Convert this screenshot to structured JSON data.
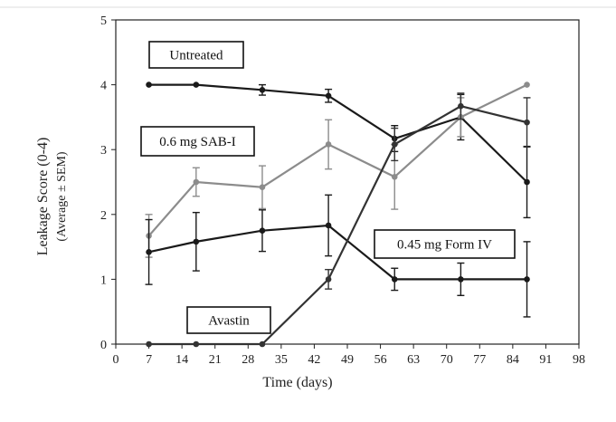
{
  "chart_data": {
    "type": "line",
    "title": "",
    "xlabel": "Time (days)",
    "ylabel": "Leakage Score (0-4)",
    "ylabel_sub": "(Average ± SEM)",
    "xlim": [
      0,
      98
    ],
    "ylim": [
      0,
      5
    ],
    "xticks": [
      0,
      7,
      14,
      21,
      28,
      35,
      42,
      49,
      56,
      63,
      70,
      77,
      84,
      91,
      98
    ],
    "xtick_labels": [
      "0",
      "7",
      "14",
      "21",
      "28",
      "35",
      "42",
      "49",
      "56",
      "63",
      "70",
      "77",
      "84",
      "91",
      "98"
    ],
    "yticks": [
      0,
      1,
      2,
      3,
      4,
      5
    ],
    "ytick_labels": [
      "0",
      "1",
      "2",
      "3",
      "4",
      "5"
    ],
    "grid": false,
    "series": [
      {
        "name": "Untreated",
        "color": "#1a1a1a",
        "x": [
          7,
          17,
          31,
          45,
          59,
          73,
          87
        ],
        "values": [
          4.0,
          4.0,
          3.92,
          3.83,
          3.17,
          3.5,
          2.5
        ],
        "errors": [
          0,
          0,
          0.08,
          0.1,
          0.2,
          0.35,
          0.55
        ]
      },
      {
        "name": "0.6 mg SAB-I",
        "color": "#8c8c8c",
        "x": [
          7,
          17,
          31,
          45,
          59,
          73,
          87
        ],
        "values": [
          1.67,
          2.5,
          2.42,
          3.08,
          2.58,
          3.5,
          4.0
        ],
        "errors": [
          0.33,
          0.22,
          0.33,
          0.38,
          0.5,
          0.3,
          0
        ]
      },
      {
        "name": "0.45 mg Form IV",
        "color": "#1a1a1a",
        "x": [
          7,
          17,
          31,
          45,
          59,
          73,
          87
        ],
        "values": [
          1.42,
          1.58,
          1.75,
          1.83,
          1.0,
          1.0,
          1.0
        ],
        "errors": [
          0.5,
          0.45,
          0.32,
          0.47,
          0.17,
          0.25,
          0.58
        ]
      },
      {
        "name": "Avastin",
        "color": "#333333",
        "x": [
          7,
          17,
          31,
          45,
          59,
          73,
          87
        ],
        "values": [
          0,
          0,
          0,
          1.0,
          3.08,
          3.67,
          3.42
        ],
        "errors": [
          0,
          0,
          0,
          0.15,
          0.25,
          0.2,
          0.38
        ]
      }
    ],
    "annotations": [
      {
        "text": "Untreated",
        "series": "Untreated"
      },
      {
        "text": "0.6 mg SAB-I",
        "series": "0.6 mg SAB-I"
      },
      {
        "text": "0.45 mg Form IV",
        "series": "0.45 mg Form IV"
      },
      {
        "text": "Avastin",
        "series": "Avastin"
      }
    ]
  }
}
